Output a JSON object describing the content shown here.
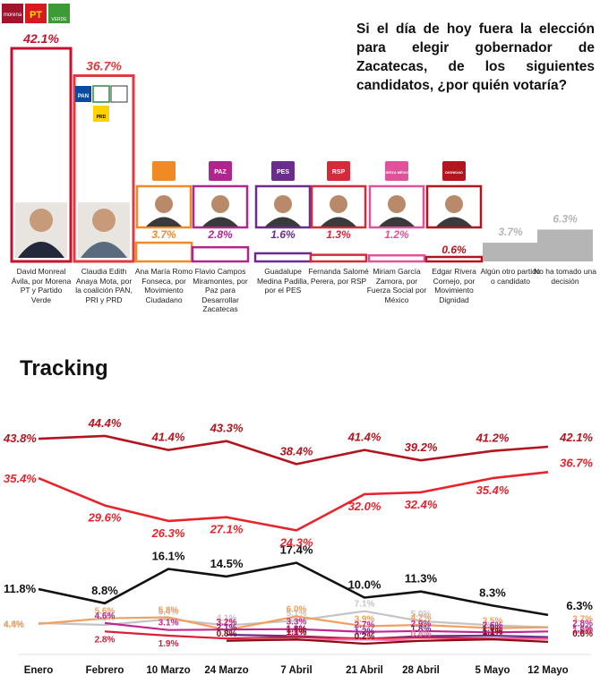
{
  "question": "Si el día de hoy fuera la elección para elegir gobernador de Zacatecas, de los siguientes candidatos, ¿por quién votaría?",
  "logos": {
    "morena": "morena",
    "pt": "PT",
    "verde": "VERDE",
    "pan": "PAN",
    "prd": "PRD",
    "mc": "",
    "paz": "PAZ",
    "pes": "PES",
    "rsp": "RSP",
    "fsm": "FUERZA MÉXICO",
    "md": "DIGNIDAD"
  },
  "chart_data": [
    {
      "type": "bar",
      "title": "",
      "categories": [
        "David Monreal Ávila, por Morena PT y Partido Verde",
        "Claudia Edith Anaya Mota, por la coalición PAN, PRI y PRD",
        "Ana María Romo Fonseca, por Movimiento Ciudadano",
        "Flavio Campos Miramontes, por Paz para Desarrollar Zacatecas",
        "Guadalupe Medina Padilla, por el PES",
        "Fernanda Salomé Perera, por RSP",
        "Miriam García Zamora, por Fuerza Social por México",
        "Edgar Rivera Cornejo, por Movimiento Dignidad",
        "Algún otro partido o candidato",
        "No ha tomado una decisión"
      ],
      "values": [
        42.1,
        36.7,
        3.7,
        2.8,
        1.6,
        1.3,
        1.2,
        0.6,
        3.7,
        6.3
      ],
      "value_labels": [
        "42.1%",
        "36.7%",
        "3.7%",
        "2.8%",
        "1.6%",
        "1.3%",
        "1.2%",
        "0.6%",
        "3.7%",
        "6.3%"
      ],
      "colors": [
        "#c8102e",
        "#e03a3e",
        "#f08a24",
        "#b0268f",
        "#6a2c8e",
        "#d42a3a",
        "#e0529c",
        "#b3141d",
        "#b5b5b5",
        "#b5b5b5"
      ],
      "ylim": [
        0,
        45
      ]
    },
    {
      "type": "line",
      "title": "Tracking",
      "categories": [
        "Enero",
        "Febrero",
        "10 Marzo",
        "24 Marzo",
        "7 Abril",
        "21 Abril",
        "28 Abril",
        "5 Mayo",
        "12 Mayo"
      ],
      "ylim": [
        0,
        46
      ],
      "series": [
        {
          "color": "#b3141d",
          "values": [
            43.8,
            44.4,
            41.4,
            43.3,
            38.4,
            41.4,
            39.2,
            41.2,
            42.1
          ],
          "labels": [
            "43.8%",
            "44.4%",
            "41.4%",
            "43.3%",
            "38.4%",
            "41.4%",
            "39.2%",
            "41.2%",
            "42.1%"
          ]
        },
        {
          "color": "#e8232b",
          "values": [
            35.4,
            29.6,
            26.3,
            27.1,
            24.3,
            32.0,
            32.4,
            35.4,
            36.7
          ],
          "labels": [
            "35.4%",
            "29.6%",
            "26.3%",
            "27.1%",
            "24.3%",
            "32.0%",
            "32.4%",
            "35.4%",
            "36.7%"
          ]
        },
        {
          "color": "#111111",
          "values": [
            11.8,
            8.8,
            16.1,
            14.5,
            17.4,
            10.0,
            11.3,
            8.3,
            6.3
          ],
          "labels": [
            "11.8%",
            "8.8%",
            "16.1%",
            "14.5%",
            "17.4%",
            "10.0%",
            "11.3%",
            "8.3%",
            "6.3%"
          ]
        },
        {
          "color": "#f0a060",
          "values": [
            4.4,
            5.6,
            5.8,
            3.1,
            6.0,
            3.9,
            4.2,
            3.5,
            3.7
          ],
          "labels": [
            "4.4%",
            "5.6%",
            "5.8%",
            "3.1%",
            "6.0%",
            "3.9%",
            "4.2%",
            "3.5%",
            "3.7%"
          ]
        },
        {
          "color": "#c4c4c4",
          "values": [
            4.6,
            4.2,
            5.4,
            4.1,
            5.1,
            7.1,
            5.0,
            4.1,
            3.7
          ],
          "labels": [
            "4.6%",
            "4.2%",
            "5.4%",
            "4.1%",
            "5.1%",
            "7.1%",
            "5.0%",
            "",
            ""
          ]
        },
        {
          "color": "#c02890",
          "values": [
            null,
            4.6,
            3.1,
            3.2,
            3.3,
            2.7,
            2.9,
            2.6,
            2.8
          ],
          "labels": [
            "",
            "4.6%",
            "3.1%",
            "3.2%",
            "3.3%",
            "2.7%",
            "2.9%",
            "2.6%",
            "2.8%"
          ]
        },
        {
          "color": "#6a2c8e",
          "values": [
            null,
            null,
            null,
            2.1,
            1.8,
            1.2,
            1.8,
            1.9,
            1.6
          ],
          "labels": [
            "",
            "",
            "",
            "2.1%",
            "1.8%",
            "1.2%",
            "1.8%",
            "1.9%",
            "1.6%"
          ]
        },
        {
          "color": "#d81e3a",
          "values": [
            null,
            2.8,
            1.9,
            1.3,
            1.6,
            1.3,
            1.5,
            1.3,
            1.3
          ],
          "labels": [
            "",
            "2.8%",
            "1.9%",
            "",
            "1.6%",
            "",
            "",
            "1.3%",
            "1.3%"
          ]
        },
        {
          "color": "#f06aa8",
          "values": [
            null,
            null,
            null,
            0.9,
            1.0,
            1.1,
            0.8,
            1.2,
            1.2
          ],
          "labels": [
            "",
            "",
            "",
            "",
            "1.0%",
            "",
            "0.8%",
            "",
            "1.2%"
          ]
        },
        {
          "color": "#8b0a12",
          "values": [
            null,
            null,
            null,
            0.8,
            1.1,
            0.2,
            0.8,
            1.1,
            0.6
          ],
          "labels": [
            "",
            "",
            "",
            "0.8%",
            "1.1%",
            "0.2%",
            "",
            "1.1%",
            "0.6%"
          ]
        }
      ]
    }
  ]
}
